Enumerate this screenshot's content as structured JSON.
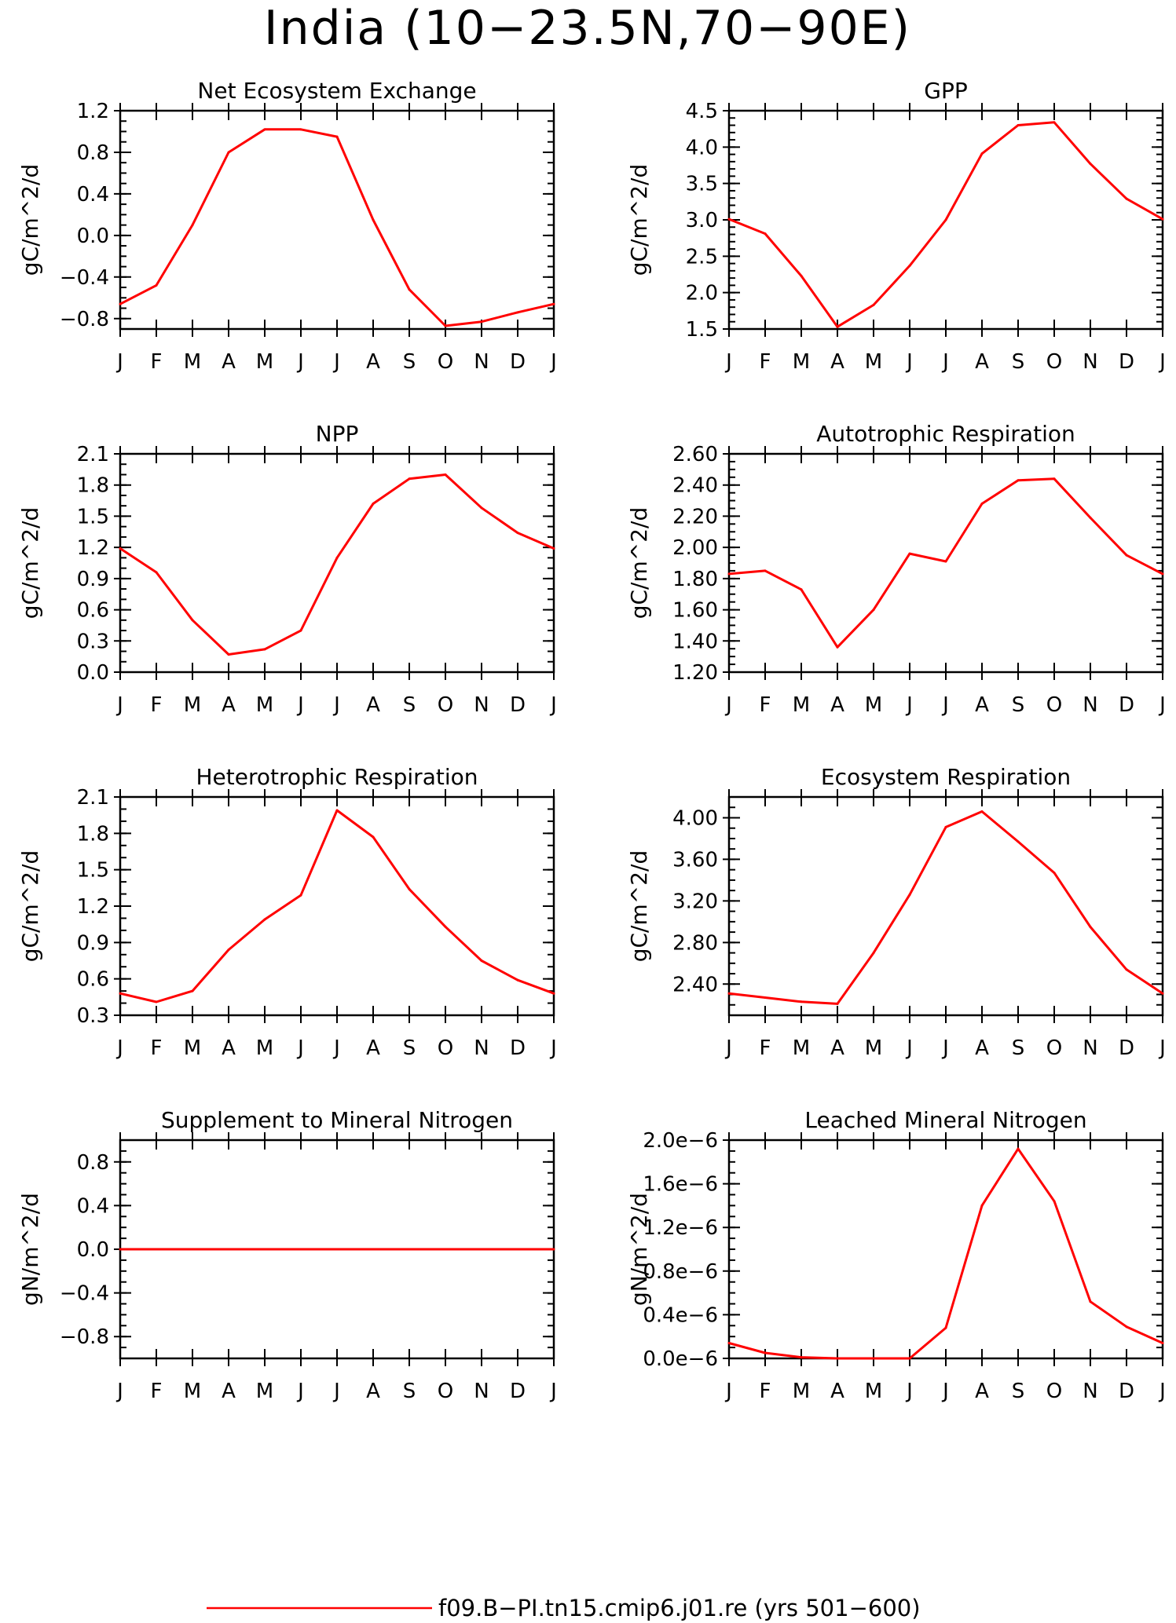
{
  "figure": {
    "title": "India (10−23.5N,70−90E)",
    "line_color": "#ff0000",
    "legend_label": "f09.B−PI.tn15.cmip6.j01.re (yrs 501−600)"
  },
  "months": [
    "J",
    "F",
    "M",
    "A",
    "M",
    "J",
    "J",
    "A",
    "S",
    "O",
    "N",
    "D",
    "J"
  ],
  "chart_data": [
    {
      "type": "line",
      "title": "Net Ecosystem Exchange",
      "ylabel": "gC/m^2/d",
      "ylim": [
        -0.9,
        1.2
      ],
      "yticks": [
        -0.8,
        -0.4,
        0.0,
        0.4,
        0.8,
        1.2
      ],
      "ytick_labels": [
        "−0.8",
        "−0.4",
        "0.0",
        "0.4",
        "0.8",
        "1.2"
      ],
      "yminor": 0.1,
      "categories": [
        "J",
        "F",
        "M",
        "A",
        "M",
        "J",
        "J",
        "A",
        "S",
        "O",
        "N",
        "D",
        "J"
      ],
      "values": [
        -0.66,
        -0.48,
        0.1,
        0.8,
        1.02,
        1.02,
        0.95,
        0.15,
        -0.52,
        -0.87,
        -0.83,
        -0.74,
        -0.66
      ]
    },
    {
      "type": "line",
      "title": "GPP",
      "ylabel": "gC/m^2/d",
      "ylim": [
        1.5,
        4.5
      ],
      "yticks": [
        1.5,
        2.0,
        2.5,
        3.0,
        3.5,
        4.0,
        4.5
      ],
      "ytick_labels": [
        "1.5",
        "2.0",
        "2.5",
        "3.0",
        "3.5",
        "4.0",
        "4.5"
      ],
      "yminor": 0.1,
      "categories": [
        "J",
        "F",
        "M",
        "A",
        "M",
        "J",
        "J",
        "A",
        "S",
        "O",
        "N",
        "D",
        "J"
      ],
      "values": [
        3.01,
        2.81,
        2.23,
        1.53,
        1.83,
        2.37,
        3.0,
        3.91,
        4.3,
        4.34,
        3.77,
        3.29,
        3.01
      ]
    },
    {
      "type": "line",
      "title": "NPP",
      "ylabel": "gC/m^2/d",
      "ylim": [
        0.0,
        2.1
      ],
      "yticks": [
        0.0,
        0.3,
        0.6,
        0.9,
        1.2,
        1.5,
        1.8,
        2.1
      ],
      "ytick_labels": [
        "0.0",
        "0.3",
        "0.6",
        "0.9",
        "1.2",
        "1.5",
        "1.8",
        "2.1"
      ],
      "yminor": 0.1,
      "categories": [
        "J",
        "F",
        "M",
        "A",
        "M",
        "J",
        "J",
        "A",
        "S",
        "O",
        "N",
        "D",
        "J"
      ],
      "values": [
        1.19,
        0.96,
        0.5,
        0.17,
        0.22,
        0.4,
        1.1,
        1.62,
        1.86,
        1.9,
        1.58,
        1.34,
        1.19
      ]
    },
    {
      "type": "line",
      "title": "Autotrophic Respiration",
      "ylabel": "gC/m^2/d",
      "ylim": [
        1.2,
        2.6
      ],
      "yticks": [
        1.2,
        1.4,
        1.6,
        1.8,
        2.0,
        2.2,
        2.4,
        2.6
      ],
      "ytick_labels": [
        "1.20",
        "1.40",
        "1.60",
        "1.80",
        "2.00",
        "2.20",
        "2.40",
        "2.60"
      ],
      "yminor": 0.05,
      "categories": [
        "J",
        "F",
        "M",
        "A",
        "M",
        "J",
        "J",
        "A",
        "S",
        "O",
        "N",
        "D",
        "J"
      ],
      "values": [
        1.83,
        1.85,
        1.73,
        1.36,
        1.6,
        1.96,
        1.91,
        2.28,
        2.43,
        2.44,
        2.19,
        1.95,
        1.83
      ]
    },
    {
      "type": "line",
      "title": "Heterotrophic Respiration",
      "ylabel": "gC/m^2/d",
      "ylim": [
        0.3,
        2.1
      ],
      "yticks": [
        0.3,
        0.6,
        0.9,
        1.2,
        1.5,
        1.8,
        2.1
      ],
      "ytick_labels": [
        "0.3",
        "0.6",
        "0.9",
        "1.2",
        "1.5",
        "1.8",
        "2.1"
      ],
      "yminor": 0.1,
      "categories": [
        "J",
        "F",
        "M",
        "A",
        "M",
        "J",
        "J",
        "A",
        "S",
        "O",
        "N",
        "D",
        "J"
      ],
      "values": [
        0.48,
        0.41,
        0.5,
        0.84,
        1.09,
        1.29,
        1.99,
        1.77,
        1.34,
        1.03,
        0.75,
        0.59,
        0.48
      ]
    },
    {
      "type": "line",
      "title": "Ecosystem Respiration",
      "ylabel": "gC/m^2/d",
      "ylim": [
        2.1,
        4.2
      ],
      "yticks": [
        2.4,
        2.8,
        3.2,
        3.6,
        4.0
      ],
      "ytick_labels": [
        "2.40",
        "2.80",
        "3.20",
        "3.60",
        "4.00"
      ],
      "yminor": 0.1,
      "categories": [
        "J",
        "F",
        "M",
        "A",
        "M",
        "J",
        "J",
        "A",
        "S",
        "O",
        "N",
        "D",
        "J"
      ],
      "values": [
        2.31,
        2.27,
        2.23,
        2.21,
        2.7,
        3.26,
        3.91,
        4.06,
        3.77,
        3.47,
        2.95,
        2.54,
        2.31
      ]
    },
    {
      "type": "line",
      "title": "Supplement to Mineral Nitrogen",
      "ylabel": "gN/m^2/d",
      "ylim": [
        -1.0,
        1.0
      ],
      "yticks": [
        -0.8,
        -0.4,
        0.0,
        0.4,
        0.8
      ],
      "ytick_labels": [
        "−0.8",
        "−0.4",
        "0.0",
        "0.4",
        "0.8"
      ],
      "yminor": 0.1,
      "categories": [
        "J",
        "F",
        "M",
        "A",
        "M",
        "J",
        "J",
        "A",
        "S",
        "O",
        "N",
        "D",
        "J"
      ],
      "values": [
        0,
        0,
        0,
        0,
        0,
        0,
        0,
        0,
        0,
        0,
        0,
        0,
        0
      ]
    },
    {
      "type": "line",
      "title": "Leached Mineral Nitrogen",
      "ylabel": "gN/m^2/d",
      "ylim": [
        0.0,
        2e-06
      ],
      "yticks": [
        0.0,
        4e-07,
        8e-07,
        1.2e-06,
        1.6e-06,
        2e-06
      ],
      "ytick_labels": [
        "0.0e−6",
        "0.4e−6",
        "0.8e−6",
        "1.2e−6",
        "1.6e−6",
        "2.0e−6"
      ],
      "yminor": 1e-07,
      "categories": [
        "J",
        "F",
        "M",
        "A",
        "M",
        "J",
        "J",
        "A",
        "S",
        "O",
        "N",
        "D",
        "J"
      ],
      "values": [
        1.4e-07,
        5e-08,
        1e-08,
        0,
        0,
        0,
        2.8e-07,
        1.4e-06,
        1.92e-06,
        1.44e-06,
        5.2e-07,
        2.9e-07,
        1.4e-07
      ]
    }
  ]
}
